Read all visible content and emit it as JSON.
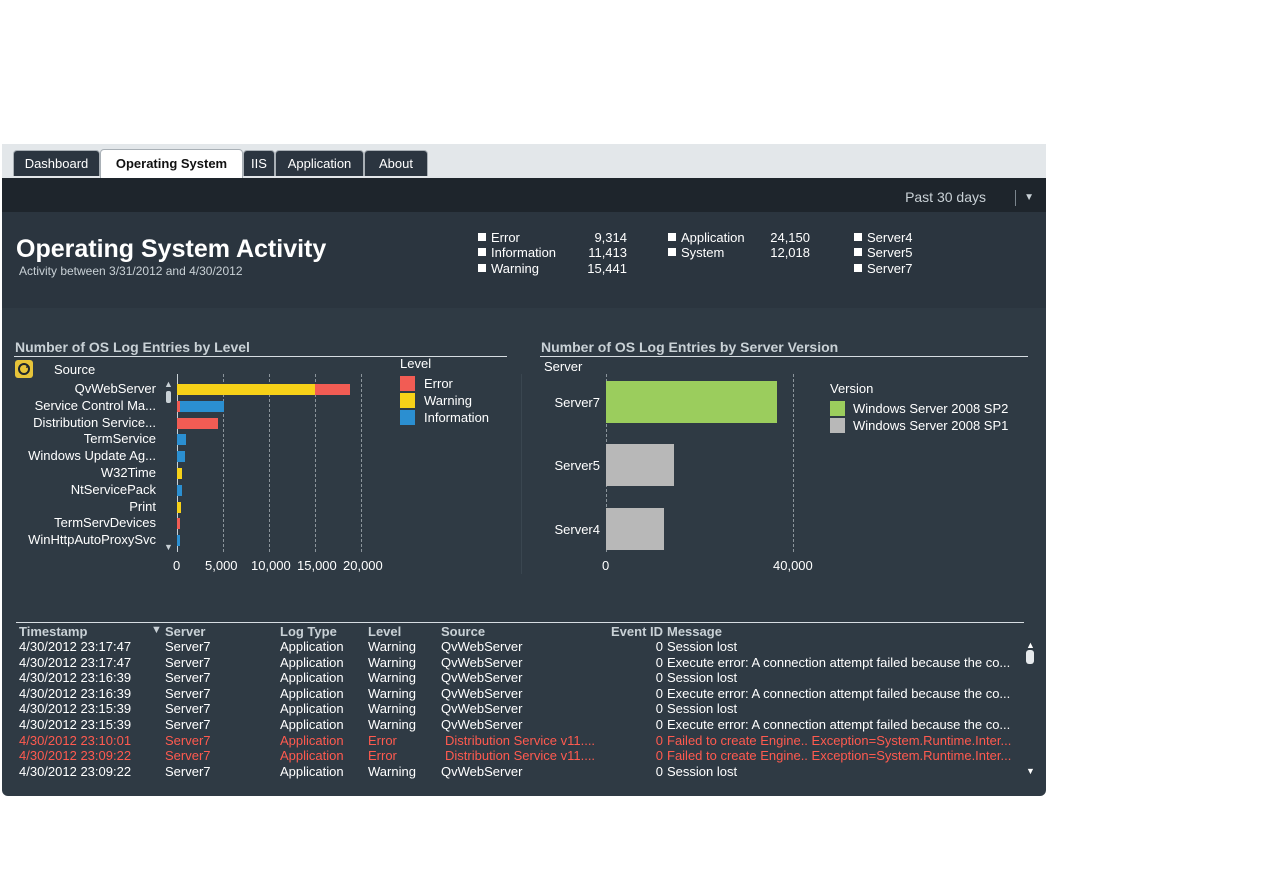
{
  "tabs": [
    {
      "label": "Dashboard",
      "active": false
    },
    {
      "label": "Operating System",
      "active": true
    },
    {
      "label": "IIS",
      "active": false
    },
    {
      "label": "Application",
      "active": false
    },
    {
      "label": "About",
      "active": false
    }
  ],
  "period": {
    "label": "Past 30 days"
  },
  "page": {
    "title": "Operating System Activity",
    "subtitle": "Activity between 3/31/2012 and 4/30/2012"
  },
  "filters": {
    "levels": [
      {
        "label": "Error",
        "count": "9,314"
      },
      {
        "label": "Information",
        "count": "11,413"
      },
      {
        "label": "Warning",
        "count": "15,441"
      }
    ],
    "log_types": [
      {
        "label": "Application",
        "count": "24,150"
      },
      {
        "label": "System",
        "count": "12,018"
      }
    ],
    "servers": [
      {
        "label": "Server4"
      },
      {
        "label": "Server5"
      },
      {
        "label": "Server7"
      }
    ]
  },
  "colors": {
    "error": "#f25c54",
    "warning": "#f7d118",
    "information": "#2b8fd1",
    "sp2": "#9bcd5d",
    "sp1": "#b8b8b8"
  },
  "chart_data": [
    {
      "type": "bar",
      "orientation": "horizontal",
      "stacked": true,
      "title": "Number of OS Log Entries by Level",
      "dimension_label": "Source",
      "legend_title": "Level",
      "categories": [
        "QvWebServer",
        "Service Control Ma...",
        "Distribution Service...",
        "TermService",
        "Windows Update Ag...",
        "W32Time",
        "NtServicePack",
        "Print",
        "TermServDevices",
        "WinHttpAutoProxySvc"
      ],
      "series": [
        {
          "name": "Warning",
          "color": "#f7d118",
          "values": [
            15000,
            0,
            0,
            0,
            0,
            500,
            0,
            400,
            0,
            0
          ]
        },
        {
          "name": "Error",
          "color": "#f25c54",
          "values": [
            3800,
            300,
            4500,
            0,
            0,
            0,
            0,
            0,
            300,
            0
          ]
        },
        {
          "name": "Information",
          "color": "#2b8fd1",
          "values": [
            0,
            4800,
            0,
            1000,
            900,
            0,
            500,
            0,
            0,
            300
          ]
        }
      ],
      "xticks": [
        "0",
        "5,000",
        "10,000",
        "15,000",
        "20,000"
      ],
      "xlim": [
        0,
        20000
      ],
      "legend_placement": "top-right"
    },
    {
      "type": "bar",
      "orientation": "horizontal",
      "title": "Number of OS Log Entries by Server Version",
      "dimension_label": "Server",
      "legend_title": "Version",
      "categories": [
        "Server7",
        "Server5",
        "Server4"
      ],
      "series": [
        {
          "name": "Windows Server 2008 SP2",
          "color": "#9bcd5d",
          "values": [
            36500,
            0,
            0
          ]
        },
        {
          "name": "Windows Server 2008 SP1",
          "color": "#b8b8b8",
          "values": [
            0,
            14500,
            12500
          ]
        }
      ],
      "xticks": [
        "0",
        "40,000"
      ],
      "xlim": [
        0,
        40000
      ],
      "legend_placement": "top-right"
    }
  ],
  "table": {
    "columns": [
      "Timestamp",
      "Server",
      "Log Type",
      "Level",
      "Source",
      "Event ID",
      "Message"
    ],
    "rows": [
      {
        "timestamp": "4/30/2012 23:17:47",
        "server": "Server7",
        "log_type": "Application",
        "level": "Warning",
        "source": "QvWebServer",
        "event_id": "0",
        "message": "Session lost",
        "error": false
      },
      {
        "timestamp": "4/30/2012 23:17:47",
        "server": "Server7",
        "log_type": "Application",
        "level": "Warning",
        "source": "QvWebServer",
        "event_id": "0",
        "message": "Execute error: A connection attempt failed because the co...",
        "error": false
      },
      {
        "timestamp": "4/30/2012 23:16:39",
        "server": "Server7",
        "log_type": "Application",
        "level": "Warning",
        "source": "QvWebServer",
        "event_id": "0",
        "message": "Session lost",
        "error": false
      },
      {
        "timestamp": "4/30/2012 23:16:39",
        "server": "Server7",
        "log_type": "Application",
        "level": "Warning",
        "source": "QvWebServer",
        "event_id": "0",
        "message": "Execute error: A connection attempt failed because the co...",
        "error": false
      },
      {
        "timestamp": "4/30/2012 23:15:39",
        "server": "Server7",
        "log_type": "Application",
        "level": "Warning",
        "source": "QvWebServer",
        "event_id": "0",
        "message": "Session lost",
        "error": false
      },
      {
        "timestamp": "4/30/2012 23:15:39",
        "server": "Server7",
        "log_type": "Application",
        "level": "Warning",
        "source": "QvWebServer",
        "event_id": "0",
        "message": "Execute error: A connection attempt failed because the co...",
        "error": false
      },
      {
        "timestamp": "4/30/2012 23:10:01",
        "server": "Server7",
        "log_type": "Application",
        "level": "Error",
        "source": "Distribution Service v11....",
        "event_id": "0",
        "message": "Failed to create  Engine.. Exception=System.Runtime.Inter...",
        "error": true
      },
      {
        "timestamp": "4/30/2012 23:09:22",
        "server": "Server7",
        "log_type": "Application",
        "level": "Error",
        "source": "Distribution Service v11....",
        "event_id": "0",
        "message": "Failed to create  Engine.. Exception=System.Runtime.Inter...",
        "error": true
      },
      {
        "timestamp": "4/30/2012 23:09:22",
        "server": "Server7",
        "log_type": "Application",
        "level": "Warning",
        "source": "QvWebServer",
        "event_id": "0",
        "message": "Session lost",
        "error": false
      }
    ]
  }
}
